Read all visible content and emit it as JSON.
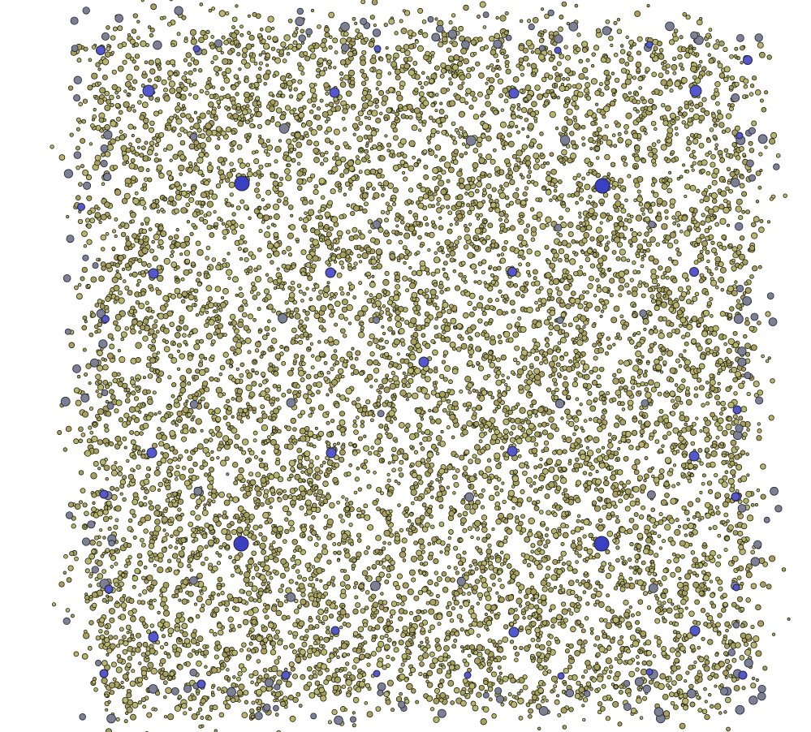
{
  "scene": {
    "background_color": "#ffffff",
    "colors": {
      "particle_fill": "#b8b56e",
      "particle_fill_alt": "#a8a060",
      "particle_stroke": "#1f1f10",
      "node_gray_fill": "#7d7f92",
      "node_blue_fill": "#3b3fc2",
      "node_blue_light": "#5558cc",
      "node_stroke": "#22243a"
    }
  }
}
